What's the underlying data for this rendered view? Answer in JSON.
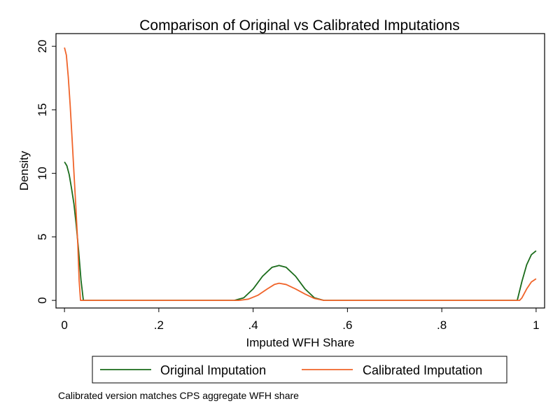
{
  "chart_data": {
    "type": "line",
    "title": "Comparison of Original vs Calibrated Imputations",
    "xlabel": "Imputed WFH Share",
    "ylabel": "Density",
    "xlim": [
      -0.018,
      1.018
    ],
    "ylim": [
      -0.6,
      21.0
    ],
    "x_ticks": [
      {
        "value": 0,
        "label": "0"
      },
      {
        "value": 0.2,
        "label": ".2"
      },
      {
        "value": 0.4,
        "label": ".4"
      },
      {
        "value": 0.6,
        "label": ".6"
      },
      {
        "value": 0.8,
        "label": ".8"
      },
      {
        "value": 1,
        "label": "1"
      }
    ],
    "y_ticks": [
      {
        "value": 0,
        "label": "0"
      },
      {
        "value": 5,
        "label": "5"
      },
      {
        "value": 10,
        "label": "10"
      },
      {
        "value": 15,
        "label": "15"
      },
      {
        "value": 20,
        "label": "20"
      }
    ],
    "grid": false,
    "legend_position": "bottom",
    "series": [
      {
        "name": "Original Imputation",
        "color": "#1a6b1a",
        "points": [
          [
            0.0,
            10.9
          ],
          [
            0.005,
            10.6
          ],
          [
            0.01,
            9.9
          ],
          [
            0.015,
            8.8
          ],
          [
            0.02,
            7.6
          ],
          [
            0.025,
            5.9
          ],
          [
            0.03,
            3.9
          ],
          [
            0.035,
            1.6
          ],
          [
            0.04,
            0.0
          ],
          [
            0.36,
            0.0
          ],
          [
            0.38,
            0.2
          ],
          [
            0.4,
            0.9
          ],
          [
            0.42,
            1.9
          ],
          [
            0.44,
            2.6
          ],
          [
            0.455,
            2.75
          ],
          [
            0.47,
            2.6
          ],
          [
            0.49,
            1.9
          ],
          [
            0.51,
            0.9
          ],
          [
            0.53,
            0.2
          ],
          [
            0.55,
            0.0
          ],
          [
            0.96,
            0.0
          ],
          [
            0.97,
            1.5
          ],
          [
            0.98,
            2.8
          ],
          [
            0.99,
            3.6
          ],
          [
            1.0,
            3.9
          ]
        ]
      },
      {
        "name": "Calibrated Imputation",
        "color": "#f0642a",
        "points": [
          [
            0.0,
            19.9
          ],
          [
            0.004,
            19.3
          ],
          [
            0.008,
            17.6
          ],
          [
            0.012,
            15.4
          ],
          [
            0.016,
            12.8
          ],
          [
            0.02,
            10.1
          ],
          [
            0.024,
            7.4
          ],
          [
            0.028,
            4.6
          ],
          [
            0.031,
            1.6
          ],
          [
            0.034,
            0.0
          ],
          [
            0.37,
            0.0
          ],
          [
            0.39,
            0.1
          ],
          [
            0.41,
            0.4
          ],
          [
            0.43,
            0.9
          ],
          [
            0.445,
            1.25
          ],
          [
            0.455,
            1.35
          ],
          [
            0.47,
            1.25
          ],
          [
            0.49,
            0.9
          ],
          [
            0.51,
            0.5
          ],
          [
            0.53,
            0.15
          ],
          [
            0.55,
            0.0
          ],
          [
            0.965,
            0.0
          ],
          [
            0.97,
            0.2
          ],
          [
            0.98,
            0.9
          ],
          [
            0.99,
            1.45
          ],
          [
            1.0,
            1.7
          ]
        ]
      }
    ],
    "note": "Calibrated version matches CPS aggregate WFH share"
  }
}
